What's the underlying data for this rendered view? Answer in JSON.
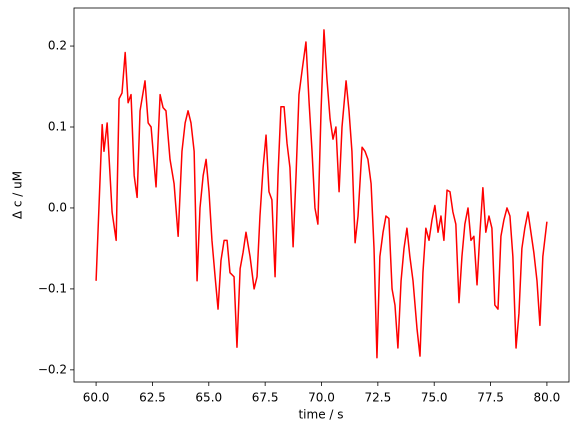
{
  "chart_data": {
    "type": "line",
    "xlabel": "time / s",
    "ylabel": "Δ  c / uM",
    "color": "#ff0000",
    "x": [
      60.0,
      60.27,
      60.35,
      60.49,
      60.71,
      60.89,
      61.02,
      61.15,
      61.29,
      61.42,
      61.55,
      61.69,
      61.82,
      61.95,
      62.17,
      62.31,
      62.44,
      62.66,
      62.84,
      62.97,
      63.1,
      63.28,
      63.46,
      63.64,
      63.81,
      63.95,
      64.08,
      64.21,
      64.35,
      64.48,
      64.61,
      64.75,
      64.88,
      65.01,
      65.14,
      65.28,
      65.41,
      65.54,
      65.68,
      65.81,
      65.94,
      66.12,
      66.25,
      66.39,
      66.52,
      66.65,
      66.83,
      67.01,
      67.14,
      67.27,
      67.41,
      67.54,
      67.67,
      67.8,
      67.94,
      68.07,
      68.2,
      68.34,
      68.47,
      68.6,
      68.74,
      68.87,
      69.0,
      69.14,
      69.31,
      69.45,
      69.58,
      69.71,
      69.84,
      69.98,
      70.11,
      70.24,
      70.38,
      70.51,
      70.64,
      70.78,
      70.91,
      71.09,
      71.22,
      71.35,
      71.49,
      71.62,
      71.8,
      71.93,
      72.06,
      72.2,
      72.33,
      72.46,
      72.59,
      72.73,
      72.86,
      72.99,
      73.13,
      73.26,
      73.39,
      73.53,
      73.66,
      73.79,
      73.92,
      74.06,
      74.24,
      74.37,
      74.5,
      74.63,
      74.77,
      74.9,
      75.03,
      75.17,
      75.3,
      75.43,
      75.57,
      75.7,
      75.83,
      75.96,
      76.1,
      76.23,
      76.36,
      76.5,
      76.63,
      76.76,
      76.9,
      77.03,
      77.16,
      77.29,
      77.43,
      77.56,
      77.69,
      77.83,
      77.96,
      78.09,
      78.23,
      78.36,
      78.49,
      78.63,
      78.76,
      78.89,
      79.02,
      79.16,
      79.29,
      79.42,
      79.56,
      79.69,
      79.82,
      80.0
    ],
    "values": [
      -0.09,
      0.103,
      0.07,
      0.105,
      -0.005,
      -0.04,
      0.135,
      0.142,
      0.192,
      0.13,
      0.14,
      0.04,
      0.013,
      0.12,
      0.157,
      0.105,
      0.1,
      0.026,
      0.14,
      0.124,
      0.12,
      0.06,
      0.03,
      -0.035,
      0.07,
      0.105,
      0.12,
      0.105,
      0.07,
      -0.09,
      0.0,
      0.04,
      0.06,
      0.02,
      -0.04,
      -0.085,
      -0.125,
      -0.065,
      -0.04,
      -0.04,
      -0.08,
      -0.085,
      -0.172,
      -0.075,
      -0.055,
      -0.03,
      -0.06,
      -0.1,
      -0.085,
      -0.01,
      0.05,
      0.09,
      0.02,
      0.01,
      -0.085,
      0.04,
      0.125,
      0.125,
      0.08,
      0.05,
      -0.048,
      0.04,
      0.14,
      0.17,
      0.205,
      0.13,
      0.07,
      0.0,
      -0.02,
      0.12,
      0.22,
      0.16,
      0.11,
      0.085,
      0.1,
      0.02,
      0.1,
      0.157,
      0.12,
      0.07,
      -0.043,
      -0.01,
      0.075,
      0.07,
      0.06,
      0.03,
      -0.05,
      -0.185,
      -0.06,
      -0.03,
      -0.01,
      -0.013,
      -0.1,
      -0.12,
      -0.173,
      -0.09,
      -0.05,
      -0.025,
      -0.06,
      -0.09,
      -0.15,
      -0.183,
      -0.08,
      -0.025,
      -0.04,
      -0.015,
      0.003,
      -0.03,
      -0.01,
      -0.04,
      0.022,
      0.02,
      -0.005,
      -0.02,
      -0.117,
      -0.06,
      -0.02,
      0.0,
      -0.04,
      -0.035,
      -0.095,
      -0.03,
      0.025,
      -0.03,
      -0.01,
      -0.025,
      -0.12,
      -0.125,
      -0.035,
      -0.015,
      0.0,
      -0.01,
      -0.06,
      -0.173,
      -0.13,
      -0.05,
      -0.025,
      -0.005,
      -0.03,
      -0.055,
      -0.09,
      -0.145,
      -0.06,
      -0.017
    ],
    "xlim": [
      59.02,
      80.98
    ],
    "ylim": [
      -0.215,
      0.247
    ],
    "xticks": [
      {
        "value": 60,
        "label": "60.0"
      },
      {
        "value": 62.5,
        "label": "62.5"
      },
      {
        "value": 65,
        "label": "65.0"
      },
      {
        "value": 67.5,
        "label": "67.5"
      },
      {
        "value": 70,
        "label": "70.0"
      },
      {
        "value": 72.5,
        "label": "72.5"
      },
      {
        "value": 75,
        "label": "75.0"
      },
      {
        "value": 77.5,
        "label": "77.5"
      },
      {
        "value": 80,
        "label": "80.0"
      }
    ],
    "yticks": [
      {
        "value": -0.2,
        "label": "−0.2"
      },
      {
        "value": -0.1,
        "label": "−0.1"
      },
      {
        "value": 0,
        "label": "0.0"
      },
      {
        "value": 0.1,
        "label": "0.1"
      },
      {
        "value": 0.2,
        "label": "0.2"
      }
    ]
  }
}
